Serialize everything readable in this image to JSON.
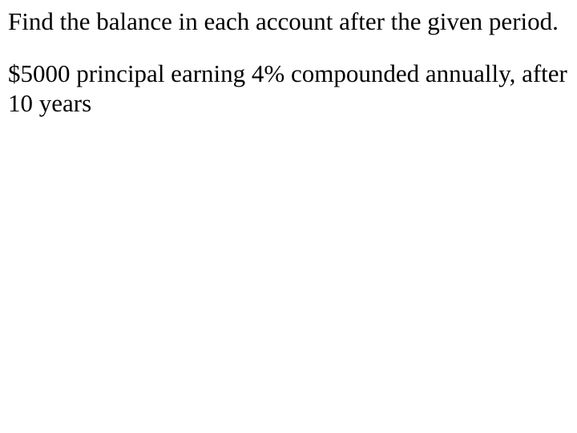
{
  "instruction": {
    "text": "Find the balance in each account after the given period."
  },
  "problem": {
    "text": "$5000 principal earning 4% compounded annually, after 10 years"
  },
  "styling": {
    "font_family": "Times New Roman",
    "font_size_pt": 24,
    "text_color": "#000000",
    "background_color": "#ffffff",
    "line_height": 1.2
  }
}
